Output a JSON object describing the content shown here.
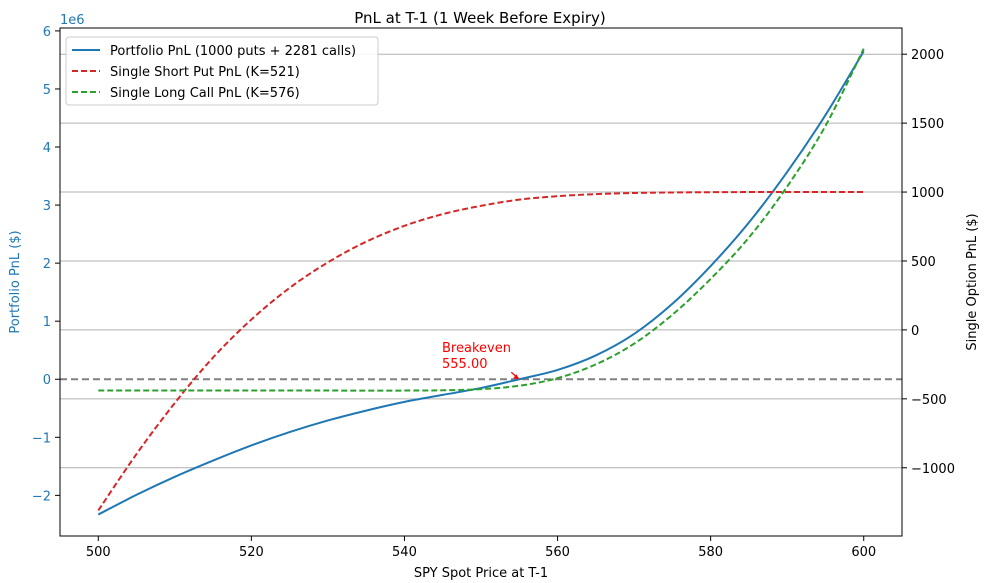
{
  "chart_data": {
    "type": "line",
    "title": "PnL at T-1 (1 Week Before Expiry)",
    "xlabel": "SPY Spot Price at T-1",
    "ylabel_left": "Portfolio PnL ($)",
    "ylabel_right": "Single Option PnL ($)",
    "left_axis_multiplier": "1e6",
    "xlim": [
      495,
      605
    ],
    "ylim_left": [
      -2.7,
      6.05
    ],
    "ylim_right": [
      -1495,
      2190
    ],
    "x_ticks": [
      500,
      520,
      540,
      560,
      580,
      600
    ],
    "y_ticks_left": [
      -2,
      -1,
      0,
      1,
      2,
      3,
      4,
      5,
      6
    ],
    "y_ticks_right": [
      -1000,
      -500,
      0,
      500,
      1000,
      1500,
      2000
    ],
    "x_tick_labels": [
      "500",
      "520",
      "540",
      "560",
      "580",
      "600"
    ],
    "y_tick_labels_left": [
      "−2",
      "−1",
      "0",
      "1",
      "2",
      "3",
      "4",
      "5",
      "6"
    ],
    "y_tick_labels_right": [
      "−1000",
      "−500",
      "0",
      "500",
      "1000",
      "1500",
      "2000"
    ],
    "grid": "right-axis horizontal",
    "zero_line": 0,
    "legend_position": "upper-left",
    "series": [
      {
        "name": "Portfolio PnL (1000 puts + 2281 calls)",
        "axis": "left",
        "color": "#1f77b4",
        "style": "solid",
        "x": [
          500,
          505,
          510,
          515,
          520,
          525,
          530,
          535,
          540,
          545,
          550,
          555,
          560,
          565,
          570,
          575,
          580,
          585,
          590,
          595,
          600
        ],
        "values": [
          -2.33,
          -1.99,
          -1.68,
          -1.4,
          -1.14,
          -0.91,
          -0.71,
          -0.54,
          -0.39,
          -0.27,
          -0.15,
          0.0,
          0.16,
          0.41,
          0.78,
          1.3,
          1.95,
          2.7,
          3.57,
          4.55,
          5.65
        ]
      },
      {
        "name": "Single Short Put PnL (K=521)",
        "axis": "right",
        "color": "#d62728",
        "style": "dashed",
        "x": [
          500,
          505,
          510,
          515,
          520,
          525,
          530,
          535,
          540,
          545,
          550,
          555,
          560,
          565,
          570,
          575,
          580,
          585,
          590,
          595,
          600
        ],
        "values": [
          -1310,
          -900,
          -530,
          -200,
          75,
          305,
          490,
          640,
          755,
          840,
          900,
          945,
          970,
          985,
          993,
          997,
          999,
          1000,
          1000,
          1000,
          1000
        ]
      },
      {
        "name": "Single Long Call PnL (K=576)",
        "axis": "right",
        "color": "#2ca02c",
        "style": "dashed",
        "x": [
          500,
          510,
          520,
          530,
          540,
          545,
          550,
          555,
          560,
          565,
          570,
          575,
          580,
          585,
          590,
          595,
          600
        ],
        "values": [
          -440,
          -440,
          -440,
          -440,
          -440,
          -438,
          -430,
          -405,
          -350,
          -250,
          -100,
          110,
          370,
          670,
          1040,
          1480,
          2040
        ]
      }
    ],
    "annotations": [
      {
        "text": [
          "Breakeven",
          "555.00"
        ],
        "x": 555,
        "y": 0,
        "color": "#ff0000"
      }
    ]
  }
}
